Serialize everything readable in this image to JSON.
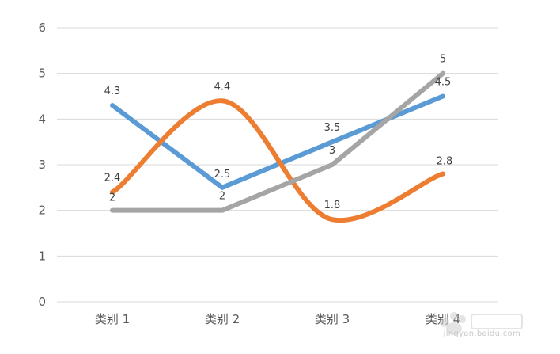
{
  "chart_data": {
    "type": "line",
    "categories": [
      "类别 1",
      "类别 2",
      "类别 3",
      "类别 4"
    ],
    "ylim": [
      0,
      6
    ],
    "yticks": [
      0,
      1,
      2,
      3,
      4,
      5,
      6
    ],
    "grid": true,
    "title": "",
    "xlabel": "",
    "ylabel": "",
    "series": [
      {
        "values": [
          4.3,
          2.5,
          3.5,
          4.5
        ],
        "labels": [
          "4.3",
          "2.5",
          "3.5",
          "4.5"
        ],
        "color": "#5b9bd5",
        "smooth": false
      },
      {
        "values": [
          2.4,
          4.4,
          1.8,
          2.8
        ],
        "labels": [
          "2.4",
          "4.4",
          "1.8",
          "2.8"
        ],
        "color": "#ed7d31",
        "smooth": true
      },
      {
        "values": [
          2,
          2,
          3,
          5
        ],
        "labels": [
          "2",
          "2",
          "3",
          "5"
        ],
        "color": "#a5a5a5",
        "smooth": false
      }
    ]
  },
  "watermark": {
    "text": "jingyan.baidu.com"
  }
}
